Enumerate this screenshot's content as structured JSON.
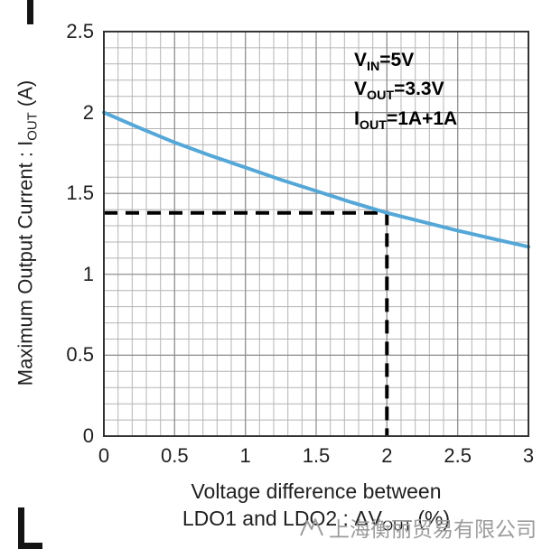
{
  "figure": {
    "y_axis_title": {
      "pre": "Maximum Output Current : I",
      "sub": "OUT",
      "post": " (A)"
    },
    "x_axis_title": {
      "line1": "Voltage difference between",
      "line2": {
        "pre": "LDO1 and LDO2 : ΔV",
        "sub": "OUT",
        "post": " (%)"
      }
    },
    "annotation": {
      "lines": [
        {
          "pre": "V",
          "sub": "IN",
          "post": "=5V"
        },
        {
          "pre": "V",
          "sub": "OUT",
          "post": "=3.3V"
        },
        {
          "pre": "I",
          "sub": "OUT",
          "post": "=1A+1A"
        }
      ]
    },
    "watermark": {
      "text": "上海衡丽贸易有限公司"
    }
  },
  "chart_data": {
    "type": "line",
    "title": "",
    "xlabel": "Voltage difference between LDO1 and LDO2 : ΔV_OUT (%)",
    "ylabel": "Maximum Output Current : I_OUT (A)",
    "xlim": [
      0,
      3
    ],
    "ylim": [
      0,
      2.5
    ],
    "x_ticks": [
      0,
      0.5,
      1,
      1.5,
      2,
      2.5,
      3
    ],
    "x_tick_labels": [
      "0",
      "0.5",
      "1",
      "1.5",
      "2",
      "2.5",
      "3"
    ],
    "y_ticks": [
      0,
      0.5,
      1,
      1.5,
      2,
      2.5
    ],
    "y_tick_labels": [
      "0",
      "0.5",
      "1",
      "1.5",
      "2",
      "2.5"
    ],
    "grid": true,
    "minor_grid_step_x": 0.1,
    "minor_grid_step_y": 0.1,
    "legend_position": "none",
    "series": [
      {
        "name": "maximum-output-current",
        "color": "#55a7d8",
        "x": [
          0,
          0.25,
          0.5,
          0.75,
          1,
          1.25,
          1.5,
          1.75,
          2,
          2.25,
          2.5,
          2.75,
          3
        ],
        "y": [
          2.0,
          1.905,
          1.815,
          1.735,
          1.66,
          1.585,
          1.515,
          1.445,
          1.38,
          1.325,
          1.27,
          1.22,
          1.17
        ]
      }
    ],
    "reference_lines": {
      "x": 2,
      "y": 1.38,
      "style": "dashed",
      "color": "#000000"
    },
    "annotations": [
      "V_IN=5V",
      "V_OUT=3.3V",
      "I_OUT=1A+1A"
    ],
    "colors": {
      "grid_minor": "#b4b4b4",
      "grid_major": "#8d8d8d",
      "border": "#333333",
      "curve": "#55a7d8",
      "dashed": "#000000"
    }
  }
}
